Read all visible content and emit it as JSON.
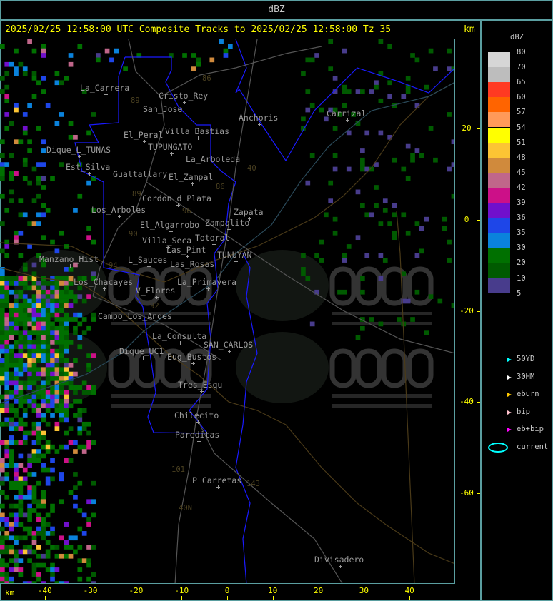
{
  "header": {
    "product": "dBZ",
    "title": "2025/02/25 12:58:00 UTC Composite Tracks to 2025/02/25 12:58:00 Tz 35",
    "unit": "km"
  },
  "legend": {
    "title": "dBZ",
    "levels": [
      {
        "label": "80",
        "color": "#d6d6d6"
      },
      {
        "label": "70",
        "color": "#bdbdbd"
      },
      {
        "label": "65",
        "color": "#ff3a22"
      },
      {
        "label": "60",
        "color": "#ff6400"
      },
      {
        "label": "57",
        "color": "#ff9a5a"
      },
      {
        "label": "54",
        "color": "#ffff00"
      },
      {
        "label": "51",
        "color": "#fcc434"
      },
      {
        "label": "48",
        "color": "#d08a3c"
      },
      {
        "label": "45",
        "color": "#c0668a"
      },
      {
        "label": "42",
        "color": "#cc1088"
      },
      {
        "label": "39",
        "color": "#7010cc"
      },
      {
        "label": "36",
        "color": "#1e46e8"
      },
      {
        "label": "35",
        "color": "#0a82dc"
      },
      {
        "label": "30",
        "color": "#007000"
      },
      {
        "label": "20",
        "color": "#005a00"
      },
      {
        "label": "10",
        "color": "#483c8c"
      }
    ],
    "bottom_label": "5",
    "tracks": [
      {
        "label": "50YD",
        "color": "#00ffff"
      },
      {
        "label": "30HM",
        "color": "#ffffff"
      },
      {
        "label": "eburn",
        "color": "#ffc800"
      },
      {
        "label": "bip",
        "color": "#ffc0cb"
      },
      {
        "label": "eb+bip",
        "color": "#ff00ff"
      },
      {
        "label": "current",
        "color": "#00ffff",
        "icon": "ellipse"
      }
    ]
  },
  "axes": {
    "x_unit": "km",
    "x_ticks": [
      "-40",
      "-30",
      "-20",
      "-10",
      "0",
      "10",
      "20",
      "30",
      "40"
    ],
    "y_ticks": [
      "20",
      "0",
      "-20",
      "-40",
      "-60"
    ]
  },
  "places": [
    "La_Carrera",
    "Cristo_Rey",
    "San_Jose",
    "El_Peral",
    "Villa_Bastias",
    "TUPUNGATO",
    "Dique_L_TUNAS",
    "Est_Silva",
    "Gualtallary",
    "La_Arboleda",
    "El_Zampal",
    "Cordon_d_Plata",
    "Los_Arboles",
    "El_Algarrobo",
    "Anchoris",
    "Carrizal",
    "Zapata",
    "Zampalito",
    "Totoral",
    "Villa_Seca",
    "Las_Pint",
    "TUNUYAN",
    "Manzano_Hist",
    "L_Sauces",
    "Las_Rosas",
    "Los_Chacayes",
    "La_Primavera",
    "V_Flores",
    "Campo_Los_Andes",
    "La_Consulta",
    "SAN_CARLOS",
    "Dique_UC1",
    "Eug_Bustos",
    "Tres_Esqu",
    "Chilecito",
    "Pareditas",
    "P_Carretas",
    "Divisadero"
  ],
  "routes": [
    "89",
    "86",
    "40",
    "86",
    "89",
    "96",
    "90",
    "94",
    "92",
    "101",
    "143",
    "40N"
  ],
  "watermark": {
    "logo": "DACC",
    "line1": "Dirección de Agricultura",
    "line2": "y Contingencias Climáticas",
    "url": "http://www.contingencias.mendoza.gov.ar"
  }
}
